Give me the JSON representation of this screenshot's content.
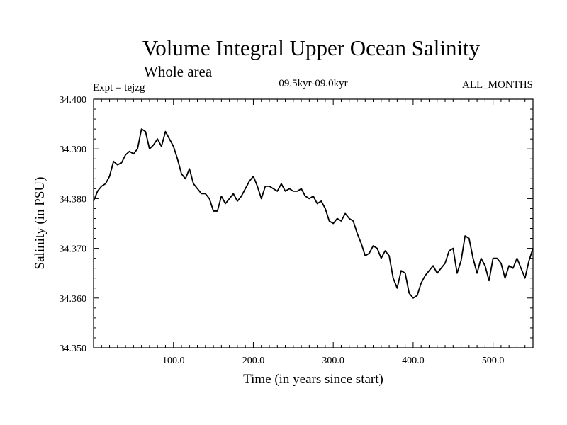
{
  "chart_data": {
    "type": "line",
    "title": "Volume Integral Upper Ocean Salinity",
    "subtitle": "Whole area",
    "experiment": "Expt = tejzg",
    "period": "09.5kyr-09.0kyr",
    "months": "ALL_MONTHS",
    "xlabel": "Time (in years since start)",
    "ylabel": "Salinity (in PSU)",
    "xlim": [
      0,
      550
    ],
    "ylim": [
      34.35,
      34.4
    ],
    "xticks": [
      100,
      200,
      300,
      400,
      500
    ],
    "xtick_labels": [
      "100.0",
      "200.0",
      "300.0",
      "400.0",
      "500.0"
    ],
    "yticks": [
      34.35,
      34.36,
      34.37,
      34.38,
      34.39,
      34.4
    ],
    "ytick_labels": [
      "34.350",
      "34.360",
      "34.370",
      "34.380",
      "34.390",
      "34.400"
    ],
    "series": [
      {
        "name": "salinity",
        "color": "#000000",
        "x": [
          0,
          5,
          10,
          15,
          20,
          25,
          30,
          35,
          40,
          45,
          50,
          55,
          60,
          65,
          70,
          75,
          80,
          85,
          90,
          95,
          100,
          105,
          110,
          115,
          120,
          125,
          130,
          135,
          140,
          145,
          150,
          155,
          160,
          165,
          170,
          175,
          180,
          185,
          190,
          195,
          200,
          205,
          210,
          215,
          220,
          225,
          230,
          235,
          240,
          245,
          250,
          255,
          260,
          265,
          270,
          275,
          280,
          285,
          290,
          295,
          300,
          305,
          310,
          315,
          320,
          325,
          330,
          335,
          340,
          345,
          350,
          355,
          360,
          365,
          370,
          375,
          380,
          385,
          390,
          395,
          400,
          405,
          410,
          415,
          420,
          425,
          430,
          435,
          440,
          445,
          450,
          455,
          460,
          465,
          470,
          475,
          480,
          485,
          490,
          495,
          500,
          505,
          510,
          515,
          520,
          525,
          530,
          535,
          540,
          545,
          550
        ],
        "y": [
          34.3795,
          34.3815,
          34.3825,
          34.383,
          34.3845,
          34.3875,
          34.3868,
          34.3872,
          34.3888,
          34.3895,
          34.389,
          34.39,
          34.394,
          34.3935,
          34.39,
          34.3908,
          34.392,
          34.3905,
          34.3935,
          34.392,
          34.3905,
          34.388,
          34.385,
          34.384,
          34.386,
          34.383,
          34.382,
          34.381,
          34.381,
          34.38,
          34.3775,
          34.3775,
          34.3805,
          34.379,
          34.38,
          34.381,
          34.3795,
          34.3805,
          34.382,
          34.3835,
          34.3845,
          34.3825,
          34.38,
          34.3825,
          34.3825,
          34.382,
          34.3815,
          34.383,
          34.3815,
          34.382,
          34.3815,
          34.3815,
          34.382,
          34.3805,
          34.38,
          34.3805,
          34.379,
          34.3795,
          34.378,
          34.3755,
          34.375,
          34.376,
          34.3755,
          34.377,
          34.376,
          34.3755,
          34.373,
          34.371,
          34.3685,
          34.369,
          34.3705,
          34.37,
          34.368,
          34.3695,
          34.3685,
          34.364,
          34.362,
          34.3655,
          34.365,
          34.361,
          34.36,
          34.3605,
          34.363,
          34.3645,
          34.3655,
          34.3665,
          34.365,
          34.366,
          34.367,
          34.3695,
          34.37,
          34.365,
          34.3675,
          34.3725,
          34.372,
          34.368,
          34.365,
          34.368,
          34.3665,
          34.3635,
          34.368,
          34.368,
          34.367,
          34.364,
          34.3665,
          34.366,
          34.368,
          34.366,
          34.364,
          34.3675,
          34.37
        ]
      }
    ]
  }
}
